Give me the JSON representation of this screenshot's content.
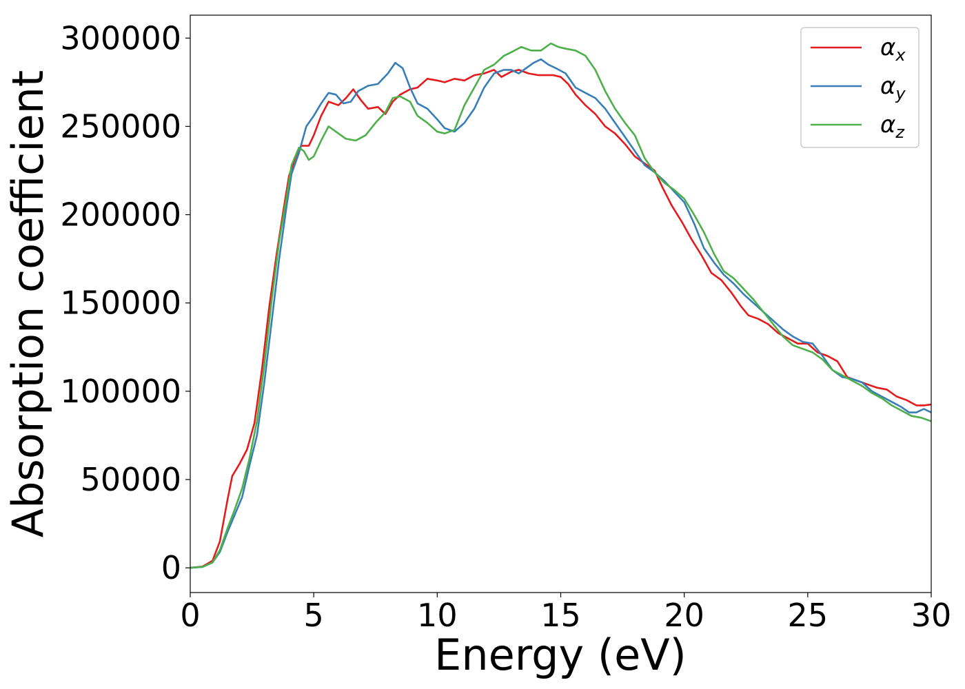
{
  "chart_data": {
    "type": "line",
    "title": "",
    "xlabel": "Energy (eV)",
    "ylabel": "Absorption coefficient",
    "xlim": [
      0,
      30
    ],
    "ylim": [
      -14000,
      313000
    ],
    "xticks": [
      0,
      5,
      10,
      15,
      20,
      25,
      30
    ],
    "yticks": [
      0,
      50000,
      100000,
      150000,
      200000,
      250000,
      300000
    ],
    "grid": false,
    "legend_position": "top-right",
    "series": [
      {
        "name": "αx",
        "legend_main": "α",
        "legend_sub": "x",
        "color": "#e41a1c",
        "points": [
          [
            0,
            0
          ],
          [
            0.5,
            700
          ],
          [
            0.9,
            4000
          ],
          [
            1.2,
            15000
          ],
          [
            1.5,
            38000
          ],
          [
            1.7,
            52000
          ],
          [
            2.0,
            59000
          ],
          [
            2.3,
            67000
          ],
          [
            2.6,
            82000
          ],
          [
            2.9,
            112000
          ],
          [
            3.2,
            148000
          ],
          [
            3.5,
            178000
          ],
          [
            3.8,
            205000
          ],
          [
            4.0,
            222000
          ],
          [
            4.3,
            234000
          ],
          [
            4.5,
            239000
          ],
          [
            4.8,
            239000
          ],
          [
            5.0,
            245000
          ],
          [
            5.3,
            256000
          ],
          [
            5.6,
            264000
          ],
          [
            6.0,
            262000
          ],
          [
            6.3,
            266000
          ],
          [
            6.6,
            271000
          ],
          [
            6.9,
            265000
          ],
          [
            7.2,
            260000
          ],
          [
            7.6,
            261000
          ],
          [
            7.9,
            257000
          ],
          [
            8.2,
            264000
          ],
          [
            8.5,
            268000
          ],
          [
            8.9,
            271000
          ],
          [
            9.2,
            272000
          ],
          [
            9.6,
            277000
          ],
          [
            10.0,
            276000
          ],
          [
            10.3,
            275000
          ],
          [
            10.7,
            277000
          ],
          [
            11.1,
            276000
          ],
          [
            11.5,
            279000
          ],
          [
            11.9,
            280000
          ],
          [
            12.3,
            282000
          ],
          [
            12.6,
            278000
          ],
          [
            13.0,
            281000
          ],
          [
            13.3,
            282000
          ],
          [
            13.7,
            280000
          ],
          [
            14.1,
            279000
          ],
          [
            14.4,
            279000
          ],
          [
            14.7,
            279000
          ],
          [
            15.0,
            278000
          ],
          [
            15.3,
            274000
          ],
          [
            15.6,
            268000
          ],
          [
            16.0,
            262000
          ],
          [
            16.4,
            257000
          ],
          [
            16.8,
            250000
          ],
          [
            17.2,
            246000
          ],
          [
            17.6,
            240000
          ],
          [
            18.0,
            233000
          ],
          [
            18.4,
            229000
          ],
          [
            18.8,
            225000
          ],
          [
            19.1,
            216000
          ],
          [
            19.5,
            205000
          ],
          [
            19.9,
            196000
          ],
          [
            20.3,
            186000
          ],
          [
            20.7,
            177000
          ],
          [
            21.1,
            167000
          ],
          [
            21.5,
            163000
          ],
          [
            21.9,
            156000
          ],
          [
            22.3,
            148000
          ],
          [
            22.6,
            143000
          ],
          [
            23.0,
            141000
          ],
          [
            23.4,
            138000
          ],
          [
            23.8,
            133000
          ],
          [
            24.2,
            130000
          ],
          [
            24.6,
            127000
          ],
          [
            25.0,
            127000
          ],
          [
            25.4,
            122000
          ],
          [
            25.8,
            120000
          ],
          [
            26.2,
            117000
          ],
          [
            26.6,
            108000
          ],
          [
            27.0,
            106000
          ],
          [
            27.4,
            104000
          ],
          [
            27.8,
            102000
          ],
          [
            28.2,
            101000
          ],
          [
            28.6,
            97000
          ],
          [
            29.0,
            95000
          ],
          [
            29.4,
            92000
          ],
          [
            29.7,
            92000
          ],
          [
            30.0,
            92500
          ]
        ]
      },
      {
        "name": "αy",
        "legend_main": "α",
        "legend_sub": "y",
        "color": "#377eb8",
        "points": [
          [
            0,
            0
          ],
          [
            0.5,
            500
          ],
          [
            0.9,
            3000
          ],
          [
            1.2,
            9000
          ],
          [
            1.5,
            20000
          ],
          [
            1.8,
            30000
          ],
          [
            2.1,
            40000
          ],
          [
            2.4,
            58000
          ],
          [
            2.7,
            75000
          ],
          [
            3.0,
            105000
          ],
          [
            3.3,
            140000
          ],
          [
            3.6,
            175000
          ],
          [
            3.9,
            205000
          ],
          [
            4.1,
            223000
          ],
          [
            4.4,
            235000
          ],
          [
            4.7,
            250000
          ],
          [
            5.0,
            256000
          ],
          [
            5.3,
            263000
          ],
          [
            5.6,
            269000
          ],
          [
            5.9,
            268000
          ],
          [
            6.2,
            263000
          ],
          [
            6.5,
            264000
          ],
          [
            6.8,
            270000
          ],
          [
            7.2,
            273000
          ],
          [
            7.6,
            274000
          ],
          [
            8.0,
            280000
          ],
          [
            8.3,
            286000
          ],
          [
            8.6,
            283000
          ],
          [
            8.9,
            272000
          ],
          [
            9.2,
            263000
          ],
          [
            9.6,
            260000
          ],
          [
            10.0,
            254000
          ],
          [
            10.3,
            249000
          ],
          [
            10.7,
            247000
          ],
          [
            11.1,
            252000
          ],
          [
            11.5,
            260000
          ],
          [
            11.9,
            272000
          ],
          [
            12.3,
            280000
          ],
          [
            12.7,
            282000
          ],
          [
            13.0,
            282000
          ],
          [
            13.3,
            280000
          ],
          [
            13.6,
            283000
          ],
          [
            13.9,
            286000
          ],
          [
            14.2,
            288000
          ],
          [
            14.5,
            285000
          ],
          [
            14.8,
            283000
          ],
          [
            15.2,
            280000
          ],
          [
            15.6,
            272000
          ],
          [
            16.0,
            269000
          ],
          [
            16.4,
            266000
          ],
          [
            16.8,
            260000
          ],
          [
            17.2,
            252000
          ],
          [
            17.6,
            244000
          ],
          [
            18.0,
            236000
          ],
          [
            18.4,
            228000
          ],
          [
            18.8,
            224000
          ],
          [
            19.2,
            219000
          ],
          [
            19.6,
            213000
          ],
          [
            20.0,
            207000
          ],
          [
            20.4,
            195000
          ],
          [
            20.8,
            181000
          ],
          [
            21.2,
            173000
          ],
          [
            21.6,
            166000
          ],
          [
            22.0,
            161000
          ],
          [
            22.4,
            155000
          ],
          [
            22.8,
            150000
          ],
          [
            23.2,
            145000
          ],
          [
            23.6,
            140000
          ],
          [
            24.0,
            135000
          ],
          [
            24.4,
            131000
          ],
          [
            24.8,
            128000
          ],
          [
            25.2,
            127000
          ],
          [
            25.6,
            120000
          ],
          [
            26.0,
            112000
          ],
          [
            26.4,
            108000
          ],
          [
            26.8,
            107000
          ],
          [
            27.2,
            105000
          ],
          [
            27.6,
            100000
          ],
          [
            28.0,
            97000
          ],
          [
            28.4,
            94000
          ],
          [
            28.8,
            91000
          ],
          [
            29.1,
            88000
          ],
          [
            29.4,
            88000
          ],
          [
            29.7,
            90000
          ],
          [
            30.0,
            88000
          ]
        ]
      },
      {
        "name": "αz",
        "legend_main": "α",
        "legend_sub": "z",
        "color": "#4daf4a",
        "points": [
          [
            0,
            0
          ],
          [
            0.5,
            500
          ],
          [
            0.9,
            3000
          ],
          [
            1.2,
            10000
          ],
          [
            1.5,
            22000
          ],
          [
            1.8,
            33000
          ],
          [
            2.1,
            45000
          ],
          [
            2.4,
            62000
          ],
          [
            2.7,
            83000
          ],
          [
            3.0,
            115000
          ],
          [
            3.3,
            152000
          ],
          [
            3.6,
            185000
          ],
          [
            3.9,
            210000
          ],
          [
            4.1,
            228000
          ],
          [
            4.4,
            238000
          ],
          [
            4.6,
            236000
          ],
          [
            4.8,
            231000
          ],
          [
            5.0,
            233000
          ],
          [
            5.3,
            242000
          ],
          [
            5.6,
            250000
          ],
          [
            6.0,
            246000
          ],
          [
            6.3,
            243000
          ],
          [
            6.7,
            242000
          ],
          [
            7.1,
            245000
          ],
          [
            7.5,
            252000
          ],
          [
            7.9,
            258000
          ],
          [
            8.2,
            266000
          ],
          [
            8.5,
            267000
          ],
          [
            8.9,
            264000
          ],
          [
            9.2,
            256000
          ],
          [
            9.6,
            252000
          ],
          [
            10.0,
            247000
          ],
          [
            10.3,
            246000
          ],
          [
            10.7,
            248000
          ],
          [
            11.1,
            262000
          ],
          [
            11.5,
            272000
          ],
          [
            11.9,
            282000
          ],
          [
            12.3,
            285000
          ],
          [
            12.7,
            290000
          ],
          [
            13.0,
            292000
          ],
          [
            13.4,
            295000
          ],
          [
            13.8,
            293000
          ],
          [
            14.2,
            293000
          ],
          [
            14.6,
            297000
          ],
          [
            14.9,
            295000
          ],
          [
            15.2,
            294000
          ],
          [
            15.6,
            293000
          ],
          [
            16.0,
            290000
          ],
          [
            16.4,
            282000
          ],
          [
            16.8,
            270000
          ],
          [
            17.2,
            260000
          ],
          [
            17.6,
            252000
          ],
          [
            18.0,
            245000
          ],
          [
            18.4,
            232000
          ],
          [
            18.8,
            224000
          ],
          [
            19.2,
            218000
          ],
          [
            19.6,
            214000
          ],
          [
            20.0,
            209000
          ],
          [
            20.4,
            200000
          ],
          [
            20.8,
            190000
          ],
          [
            21.2,
            178000
          ],
          [
            21.6,
            168000
          ],
          [
            22.0,
            164000
          ],
          [
            22.4,
            158000
          ],
          [
            22.8,
            152000
          ],
          [
            23.2,
            145000
          ],
          [
            23.6,
            138000
          ],
          [
            24.0,
            131000
          ],
          [
            24.4,
            126000
          ],
          [
            24.8,
            124000
          ],
          [
            25.2,
            122000
          ],
          [
            25.6,
            118000
          ],
          [
            26.0,
            112000
          ],
          [
            26.4,
            109000
          ],
          [
            26.8,
            106000
          ],
          [
            27.2,
            103000
          ],
          [
            27.6,
            99000
          ],
          [
            28.0,
            96000
          ],
          [
            28.4,
            92000
          ],
          [
            28.8,
            89000
          ],
          [
            29.2,
            86000
          ],
          [
            29.6,
            85000
          ],
          [
            30.0,
            83000
          ]
        ]
      }
    ]
  }
}
